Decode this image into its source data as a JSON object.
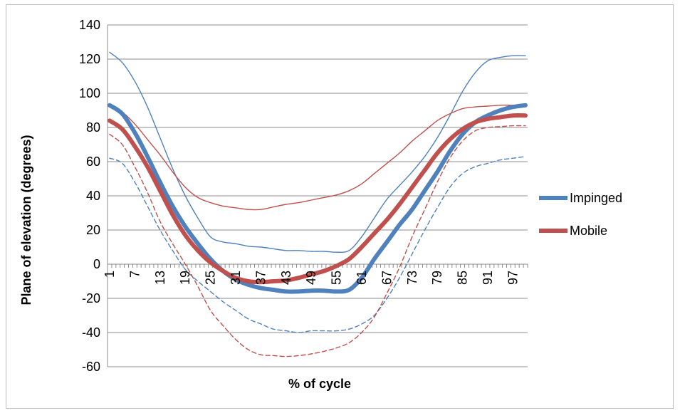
{
  "chart_data": {
    "type": "line",
    "title": "",
    "xlabel": "% of cycle",
    "ylabel": "Plane of elevation (degrees)",
    "ylim": [
      -60,
      140
    ],
    "y_ticks": [
      "140",
      "120",
      "100",
      "80",
      "60",
      "40",
      "20",
      "0",
      "-20",
      "-40",
      "-60"
    ],
    "x_ticks": [
      "1",
      "7",
      "13",
      "19",
      "25",
      "31",
      "37",
      "43",
      "49",
      "55",
      "61",
      "67",
      "73",
      "79",
      "85",
      "91",
      "97"
    ],
    "xlim": [
      1,
      100
    ],
    "grid": "horizontal",
    "legend_position": "right",
    "series": [
      {
        "name": "Impinged",
        "role": "mean",
        "color": "#4f81bd",
        "x": [
          1,
          4,
          7,
          10,
          13,
          16,
          19,
          22,
          25,
          28,
          31,
          34,
          37,
          40,
          43,
          46,
          49,
          52,
          55,
          58,
          61,
          64,
          67,
          70,
          73,
          76,
          79,
          82,
          85,
          88,
          91,
          94,
          97,
          100
        ],
        "values": [
          93,
          88,
          77,
          63,
          48,
          34,
          22,
          12,
          3,
          -4,
          -9,
          -12,
          -14,
          -15,
          -16,
          -16,
          -15.5,
          -15.5,
          -16,
          -15,
          -8,
          3,
          13,
          23,
          32,
          43,
          54,
          66,
          76,
          83,
          87,
          90,
          92,
          93
        ]
      },
      {
        "legend": false,
        "role": "upper",
        "color": "#4f81bd",
        "x": [
          1,
          4,
          7,
          10,
          13,
          16,
          19,
          22,
          25,
          28,
          31,
          34,
          37,
          40,
          43,
          46,
          49,
          52,
          55,
          58,
          61,
          64,
          67,
          70,
          73,
          76,
          79,
          82,
          85,
          88,
          91,
          94,
          97,
          100
        ],
        "values": [
          124,
          118,
          107,
          92,
          74,
          56,
          40,
          27,
          16,
          13,
          12,
          10.5,
          10,
          9,
          8,
          8,
          7.5,
          7.5,
          7,
          8,
          16,
          27,
          38,
          46,
          54,
          63,
          74,
          87,
          101,
          112,
          119,
          121,
          122,
          122
        ]
      },
      {
        "legend": false,
        "role": "lower",
        "color": "#4f81bd",
        "x": [
          1,
          4,
          7,
          10,
          13,
          16,
          19,
          22,
          25,
          28,
          31,
          34,
          37,
          40,
          43,
          46,
          49,
          52,
          55,
          58,
          61,
          64,
          67,
          70,
          73,
          76,
          79,
          82,
          85,
          88,
          91,
          94,
          97,
          100
        ],
        "values": [
          62,
          59,
          48,
          34,
          20,
          8,
          -3,
          -10,
          -16,
          -22,
          -27,
          -32,
          -35,
          -38,
          -39,
          -40,
          -39,
          -39,
          -39,
          -38,
          -35,
          -30,
          -20,
          -8,
          6,
          20,
          33,
          45,
          53,
          57,
          59,
          61,
          62,
          63
        ]
      },
      {
        "name": "Mobile",
        "role": "mean",
        "color": "#c0504d",
        "x": [
          1,
          4,
          7,
          10,
          13,
          16,
          19,
          22,
          25,
          28,
          31,
          34,
          37,
          40,
          43,
          46,
          49,
          52,
          55,
          58,
          61,
          64,
          67,
          70,
          73,
          76,
          79,
          82,
          85,
          88,
          91,
          94,
          97,
          100
        ],
        "values": [
          84,
          79,
          69,
          57,
          43,
          29,
          17,
          8,
          1,
          -4,
          -8,
          -10,
          -10.5,
          -10,
          -9.5,
          -8,
          -6,
          -4,
          -1,
          3,
          10,
          18,
          26,
          35,
          45,
          55,
          65,
          73,
          79,
          83,
          85,
          86,
          87,
          87
        ]
      },
      {
        "legend": false,
        "role": "upper",
        "color": "#c0504d",
        "x": [
          1,
          4,
          7,
          10,
          13,
          16,
          19,
          22,
          25,
          28,
          31,
          34,
          37,
          40,
          43,
          46,
          49,
          52,
          55,
          58,
          61,
          64,
          67,
          70,
          73,
          76,
          79,
          82,
          85,
          88,
          91,
          94,
          97,
          100
        ],
        "values": [
          92,
          89,
          82,
          73,
          64,
          54,
          45,
          39,
          36,
          34,
          33,
          32,
          32,
          33.5,
          35,
          36,
          37.5,
          39,
          40.5,
          43,
          47,
          53,
          59,
          65,
          72,
          78,
          84,
          88,
          91,
          92,
          92.5,
          93,
          93,
          93
        ]
      },
      {
        "legend": false,
        "role": "lower",
        "color": "#c0504d",
        "x": [
          1,
          4,
          7,
          10,
          13,
          16,
          19,
          22,
          25,
          28,
          31,
          34,
          37,
          40,
          43,
          46,
          49,
          52,
          55,
          58,
          61,
          64,
          67,
          70,
          73,
          76,
          79,
          82,
          85,
          88,
          91,
          94,
          97,
          100
        ],
        "values": [
          76,
          70,
          57,
          42,
          25,
          12,
          0,
          -13,
          -27,
          -36,
          -44,
          -50,
          -53,
          -53.5,
          -54,
          -53.5,
          -52.5,
          -51,
          -49,
          -46,
          -40,
          -31,
          -17,
          -2,
          16,
          32,
          48,
          62,
          72,
          78,
          80,
          80.5,
          81,
          81
        ]
      }
    ]
  }
}
